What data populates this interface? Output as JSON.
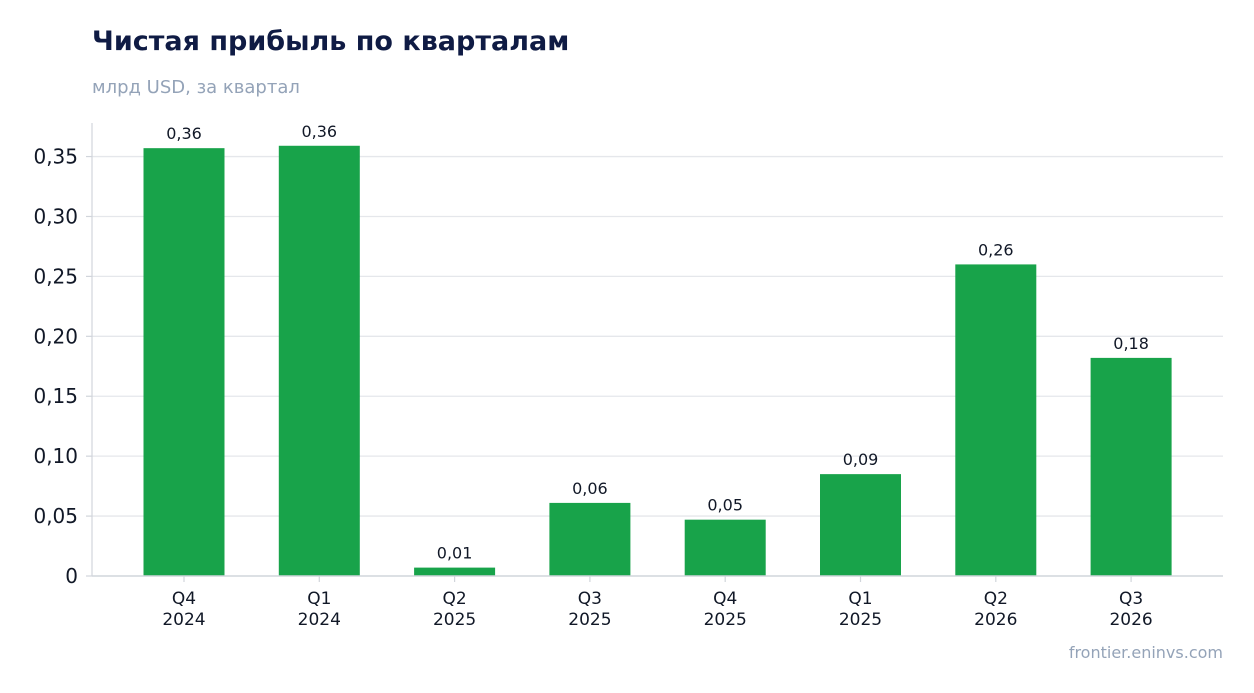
{
  "header": {
    "title": "Чистая прибыль по кварталам",
    "subtitle": "млрд USD, за квартал"
  },
  "footer": {
    "source": "frontier.eninvs.com"
  },
  "colors": {
    "bar": "#18a34a",
    "grid": "#e5e7eb",
    "axis": "#d1d5db",
    "title": "#0f1b44",
    "muted": "#94a3b8",
    "text": "#111827"
  },
  "chart_data": {
    "type": "bar",
    "title": "Чистая прибыль по кварталам",
    "subtitle": "млрд USD, за квартал",
    "categories": [
      [
        "Q4",
        "2024"
      ],
      [
        "Q1",
        "2024"
      ],
      [
        "Q2",
        "2025"
      ],
      [
        "Q3",
        "2025"
      ],
      [
        "Q4",
        "2025"
      ],
      [
        "Q1",
        "2025"
      ],
      [
        "Q2",
        "2026"
      ],
      [
        "Q3",
        "2026"
      ]
    ],
    "values": [
      0.357,
      0.359,
      0.007,
      0.061,
      0.047,
      0.085,
      0.26,
      0.182
    ],
    "data_labels": [
      "0,36",
      "0,36",
      "0,01",
      "0,06",
      "0,05",
      "0,09",
      "0,26",
      "0,18"
    ],
    "yticks": [
      0,
      0.05,
      0.1,
      0.15,
      0.2,
      0.25,
      0.3,
      0.35
    ],
    "ytick_labels": [
      "0",
      "0,05",
      "0,10",
      "0,15",
      "0,20",
      "0,25",
      "0,30",
      "0,35"
    ],
    "ylim": [
      0,
      0.378
    ],
    "grid": true,
    "legend": false
  }
}
